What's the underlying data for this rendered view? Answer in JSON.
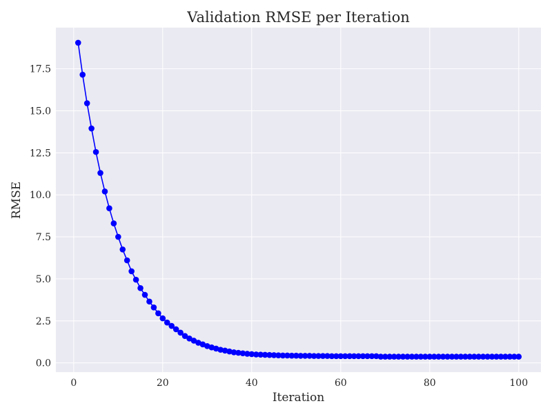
{
  "chart_data": {
    "type": "line",
    "title": "Validation RMSE per Iteration",
    "xlabel": "Iteration",
    "ylabel": "RMSE",
    "xlim": [
      -4,
      105
    ],
    "ylim": [
      -0.55,
      19.95
    ],
    "xticks": [
      0,
      20,
      40,
      60,
      80,
      100
    ],
    "xtick_labels": [
      "0",
      "20",
      "40",
      "60",
      "80",
      "100"
    ],
    "yticks": [
      0.0,
      2.5,
      5.0,
      7.5,
      10.0,
      12.5,
      15.0,
      17.5
    ],
    "ytick_labels": [
      "0.0",
      "2.5",
      "5.0",
      "7.5",
      "10.0",
      "12.5",
      "15.0",
      "17.5"
    ],
    "grid": true,
    "legend": "none",
    "series": [
      {
        "color": "#0000ff",
        "marker": "circle",
        "x": [
          1,
          2,
          3,
          4,
          5,
          6,
          7,
          8,
          9,
          10,
          11,
          12,
          13,
          14,
          15,
          16,
          17,
          18,
          19,
          20,
          21,
          22,
          23,
          24,
          25,
          26,
          27,
          28,
          29,
          30,
          31,
          32,
          33,
          34,
          35,
          36,
          37,
          38,
          39,
          40,
          41,
          42,
          43,
          44,
          45,
          46,
          47,
          48,
          49,
          50,
          51,
          52,
          53,
          54,
          55,
          56,
          57,
          58,
          59,
          60,
          61,
          62,
          63,
          64,
          65,
          66,
          67,
          68,
          69,
          70,
          71,
          72,
          73,
          74,
          75,
          76,
          77,
          78,
          79,
          80,
          81,
          82,
          83,
          84,
          85,
          86,
          87,
          88,
          89,
          90,
          91,
          92,
          93,
          94,
          95,
          96,
          97,
          98,
          99,
          100
        ],
        "y": [
          19.05,
          17.15,
          15.45,
          13.95,
          12.55,
          11.3,
          10.2,
          9.2,
          8.3,
          7.5,
          6.75,
          6.1,
          5.45,
          4.95,
          4.45,
          4.05,
          3.65,
          3.3,
          2.95,
          2.65,
          2.4,
          2.2,
          2.0,
          1.8,
          1.6,
          1.45,
          1.32,
          1.2,
          1.1,
          1.0,
          0.92,
          0.85,
          0.78,
          0.73,
          0.68,
          0.63,
          0.6,
          0.57,
          0.54,
          0.52,
          0.5,
          0.49,
          0.48,
          0.47,
          0.46,
          0.45,
          0.44,
          0.44,
          0.43,
          0.43,
          0.42,
          0.42,
          0.42,
          0.41,
          0.41,
          0.41,
          0.41,
          0.4,
          0.4,
          0.4,
          0.4,
          0.4,
          0.4,
          0.4,
          0.4,
          0.4,
          0.4,
          0.4,
          0.37,
          0.37,
          0.37,
          0.37,
          0.37,
          0.37,
          0.37,
          0.37,
          0.37,
          0.37,
          0.37,
          0.37,
          0.37,
          0.37,
          0.37,
          0.37,
          0.37,
          0.37,
          0.37,
          0.37,
          0.37,
          0.37,
          0.37,
          0.37,
          0.37,
          0.37,
          0.37,
          0.37,
          0.37,
          0.37,
          0.37,
          0.37
        ]
      }
    ]
  },
  "style": {
    "plot_background": "#eaeaf2",
    "grid_color": "#ffffff",
    "line_color": "#0000ff",
    "text_color": "#262626"
  }
}
